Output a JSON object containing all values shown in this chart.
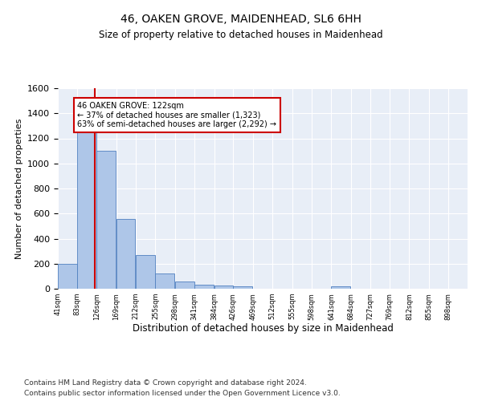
{
  "title": "46, OAKEN GROVE, MAIDENHEAD, SL6 6HH",
  "subtitle": "Size of property relative to detached houses in Maidenhead",
  "xlabel": "Distribution of detached houses by size in Maidenhead",
  "ylabel": "Number of detached properties",
  "footnote1": "Contains HM Land Registry data © Crown copyright and database right 2024.",
  "footnote2": "Contains public sector information licensed under the Open Government Licence v3.0.",
  "property_size": 122,
  "property_label": "46 OAKEN GROVE: 122sqm",
  "annotation_line1": "← 37% of detached houses are smaller (1,323)",
  "annotation_line2": "63% of semi-detached houses are larger (2,292) →",
  "bar_color": "#aec6e8",
  "bar_edge_color": "#5080c0",
  "vline_color": "#cc0000",
  "bg_color": "#e8eef7",
  "ylim": [
    0,
    1600
  ],
  "yticks": [
    0,
    200,
    400,
    600,
    800,
    1000,
    1200,
    1400,
    1600
  ],
  "bin_labels": [
    "41sqm",
    "83sqm",
    "126sqm",
    "169sqm",
    "212sqm",
    "255sqm",
    "298sqm",
    "341sqm",
    "384sqm",
    "426sqm",
    "469sqm",
    "512sqm",
    "555sqm",
    "598sqm",
    "641sqm",
    "684sqm",
    "727sqm",
    "769sqm",
    "812sqm",
    "855sqm",
    "898sqm"
  ],
  "bar_values": [
    200,
    1270,
    1100,
    555,
    270,
    120,
    60,
    35,
    25,
    18,
    0,
    0,
    0,
    0,
    18,
    0,
    0,
    0,
    0,
    0,
    0
  ],
  "bin_edges": [
    41,
    83,
    126,
    169,
    212,
    255,
    298,
    341,
    384,
    426,
    469,
    512,
    555,
    598,
    641,
    684,
    727,
    769,
    812,
    855,
    898
  ]
}
